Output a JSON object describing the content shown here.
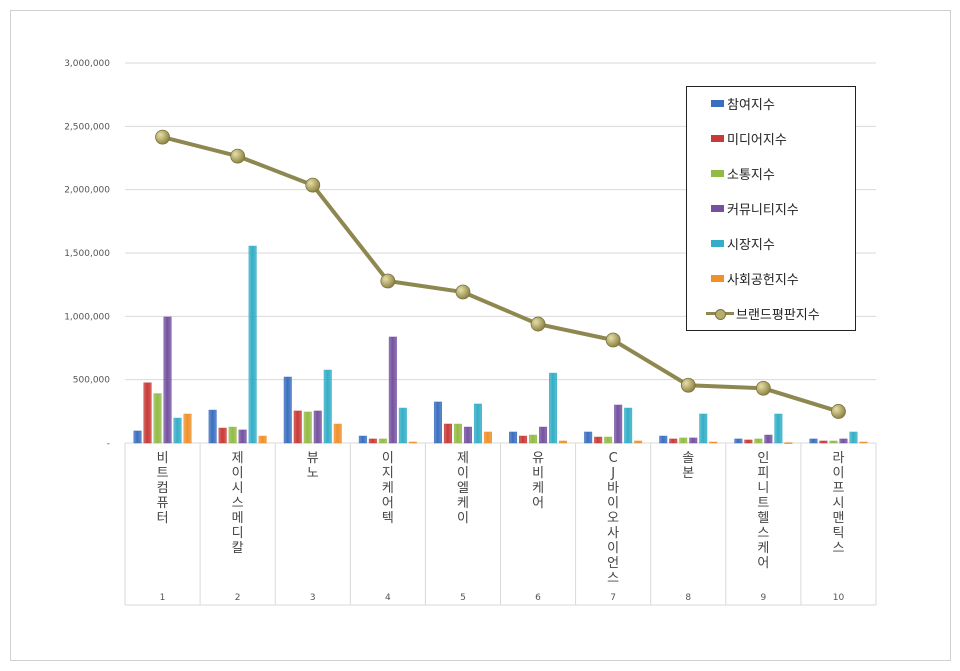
{
  "chart_data": {
    "type": "bar",
    "title": "",
    "xlabel": "",
    "ylabel": "",
    "ylim": [
      0,
      3000000
    ],
    "yticks": [
      "-",
      "500,000",
      "1,000,000",
      "1,500,000",
      "2,000,000",
      "2,500,000",
      "3,000,000"
    ],
    "ytick_values": [
      0,
      500000,
      1000000,
      1500000,
      2000000,
      2500000,
      3000000
    ],
    "grid": true,
    "legend_position": "top-right",
    "categories": [
      "비트컴퓨터",
      "제이시스메디칼",
      "뷰노",
      "이지케어텍",
      "제이엘케이",
      "유비케어",
      "CJ바이오사이언스",
      "솔본",
      "인피니트헬스케어",
      "라이프시맨틱스"
    ],
    "ranks": [
      "1",
      "2",
      "3",
      "4",
      "5",
      "6",
      "7",
      "8",
      "9",
      "10"
    ],
    "series": [
      {
        "name": "참여지수",
        "type": "bar",
        "color": "#3a6fc0",
        "values": [
          95000,
          260000,
          521000,
          55000,
          324000,
          87000,
          87000,
          55000,
          32000,
          32000
        ]
      },
      {
        "name": "미디어지수",
        "type": "bar",
        "color": "#c83a37",
        "values": [
          475000,
          118000,
          253000,
          32000,
          150000,
          55000,
          47000,
          32000,
          24000,
          16000
        ]
      },
      {
        "name": "소통지수",
        "type": "bar",
        "color": "#92bb45",
        "values": [
          390000,
          126000,
          245000,
          32000,
          150000,
          63000,
          47000,
          40000,
          32000,
          16000
        ]
      },
      {
        "name": "커뮤니티지수",
        "type": "bar",
        "color": "#7452a0",
        "values": [
          995000,
          103000,
          253000,
          837000,
          126000,
          126000,
          300000,
          40000,
          63000,
          32000
        ]
      },
      {
        "name": "시장지수",
        "type": "bar",
        "color": "#33aec6",
        "values": [
          197000,
          1555000,
          576000,
          276000,
          308000,
          552000,
          276000,
          229000,
          229000,
          87000
        ]
      },
      {
        "name": "사회공헌지수",
        "type": "bar",
        "color": "#f0902a",
        "values": [
          229000,
          55000,
          150000,
          8000,
          87000,
          16000,
          16000,
          8000,
          3000,
          8000
        ]
      },
      {
        "name": "브랜드평판지수",
        "type": "line",
        "color": "#8f8750",
        "values": [
          2415000,
          2265000,
          2036000,
          1279000,
          1192000,
          939000,
          813000,
          456000,
          432000,
          249000
        ]
      }
    ]
  }
}
